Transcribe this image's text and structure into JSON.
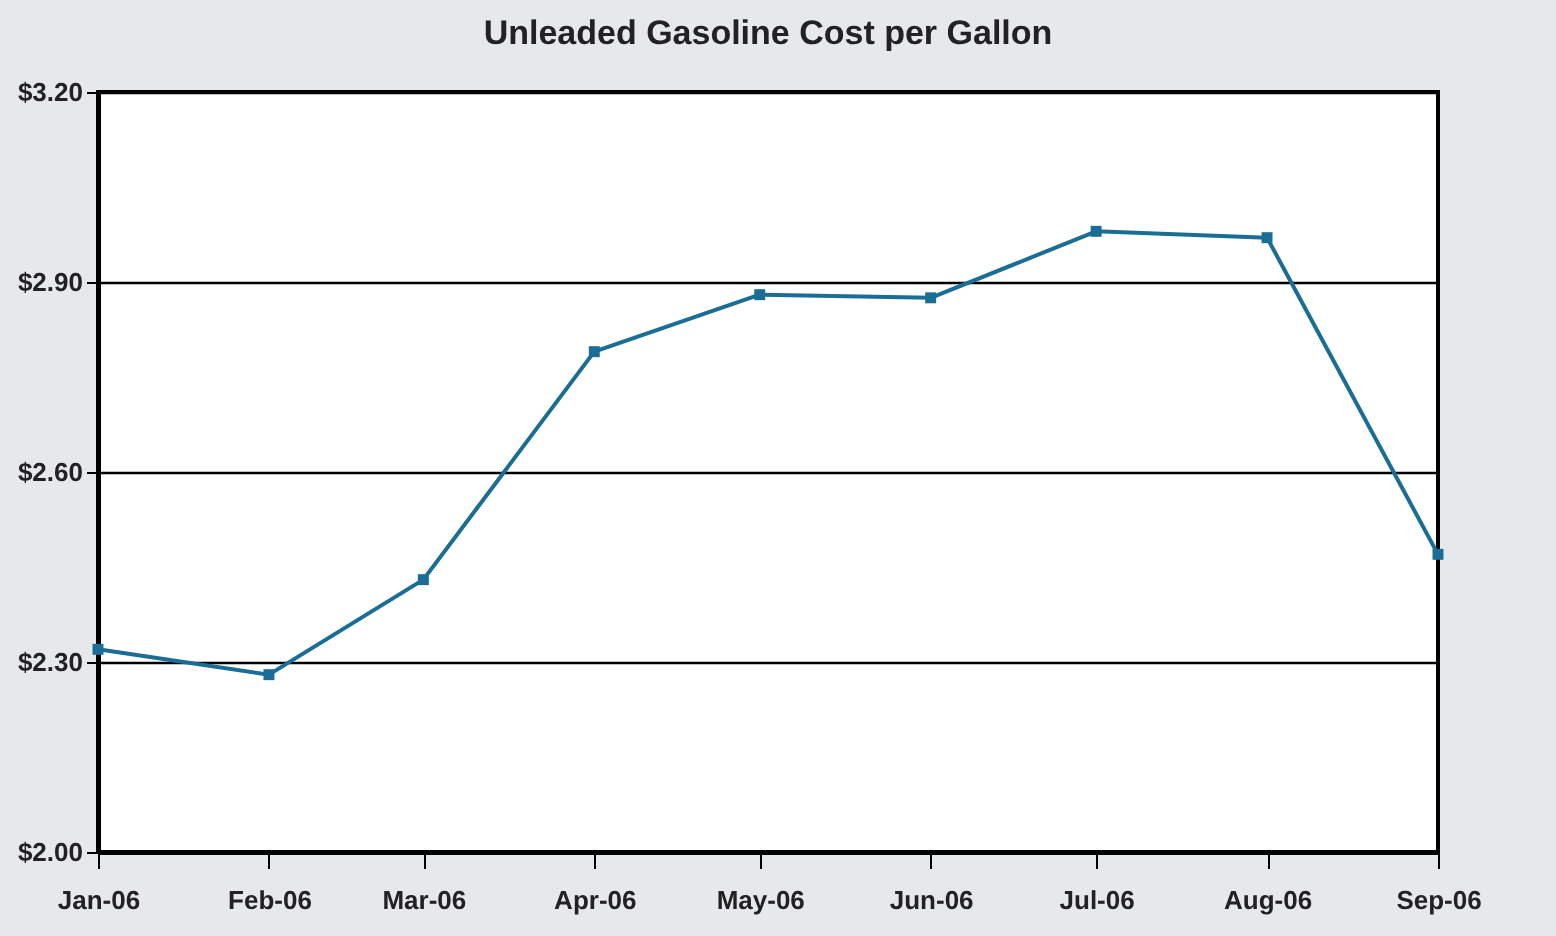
{
  "chart_data": {
    "type": "line",
    "title": "Unleaded Gasoline Cost per Gallon",
    "x": [
      "2006-01",
      "2006-02",
      "2006-03",
      "2006-04",
      "2006-05",
      "2006-06",
      "2006-07",
      "2006-08",
      "2006-09"
    ],
    "series": [
      {
        "color": "#1a6e96",
        "values": [
          2.32,
          2.28,
          2.43,
          2.79,
          2.88,
          2.875,
          2.98,
          2.97,
          2.47
        ]
      }
    ],
    "xlim": [
      "2006-01",
      "2006-09"
    ],
    "xticks": [
      {
        "value": "2006-01",
        "label": "Jan-06"
      },
      {
        "value": "2006-02",
        "label": "Feb-06"
      },
      {
        "value": "2006-03",
        "label": "Mar-06"
      },
      {
        "value": "2006-04",
        "label": "Apr-06"
      },
      {
        "value": "2006-05",
        "label": "May-06"
      },
      {
        "value": "2006-06",
        "label": "Jun-06"
      },
      {
        "value": "2006-07",
        "label": "Jul-06"
      },
      {
        "value": "2006-08",
        "label": "Aug-06"
      },
      {
        "value": "2006-09",
        "label": "Sep-06"
      }
    ],
    "ylim": [
      2.0,
      3.2
    ],
    "yticks": [
      {
        "value": 2.0,
        "label": "$2.00"
      },
      {
        "value": 2.3,
        "label": "$2.30"
      },
      {
        "value": 2.6,
        "label": "$2.60"
      },
      {
        "value": 2.9,
        "label": "$2.90"
      },
      {
        "value": 3.2,
        "label": "$3.20"
      }
    ],
    "grid": "y",
    "marker": "square",
    "line_style": "solid"
  }
}
